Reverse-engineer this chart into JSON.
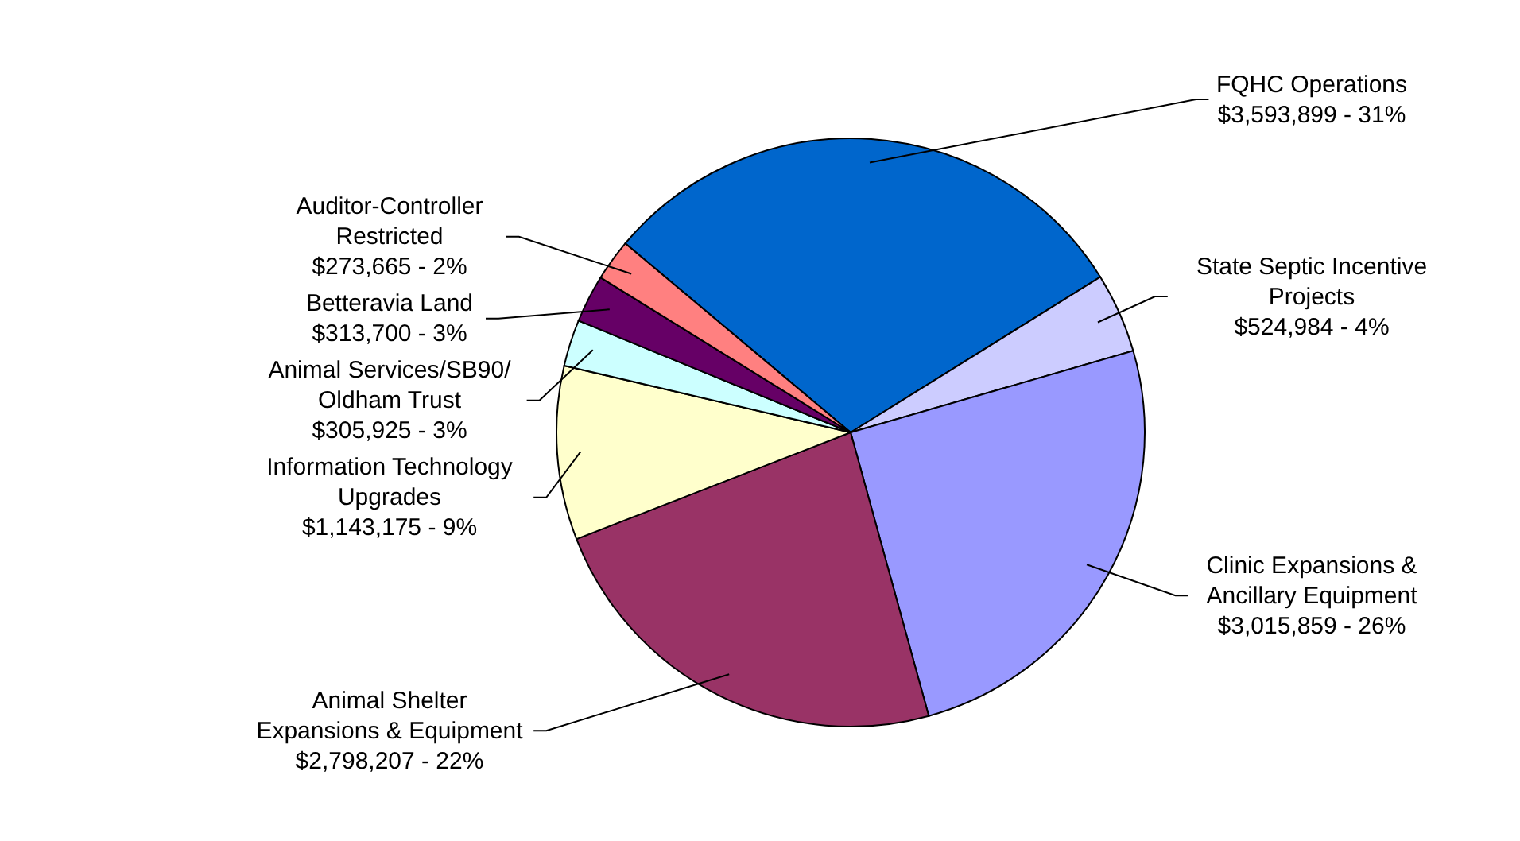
{
  "chart_data": {
    "type": "pie",
    "categories": [
      "FQHC Operations",
      "State Septic Incentive Projects",
      "Clinic Expansions & Ancillary Equipment",
      "Animal Shelter Expansions & Equipment",
      "Information Technology Upgrades",
      "Animal Services/SB90/ Oldham Trust",
      "Betteravia Land",
      "Auditor-Controller Restricted"
    ],
    "values": [
      3593899,
      524984,
      3015859,
      2798207,
      1143175,
      305925,
      313700,
      273665
    ],
    "value_labels": [
      "$3,593,899 - 31%",
      "$524,984 - 4%",
      "$3,015,859 - 26%",
      "$2,798,207 - 22%",
      "$1,143,175 - 9%",
      "$305,925 - 3%",
      "$313,700 - 3%",
      "$273,665 - 2%"
    ],
    "colors": [
      "#0066cc",
      "#ccccff",
      "#9999ff",
      "#993366",
      "#ffffcc",
      "#ccffff",
      "#660066",
      "#ff8080"
    ]
  }
}
